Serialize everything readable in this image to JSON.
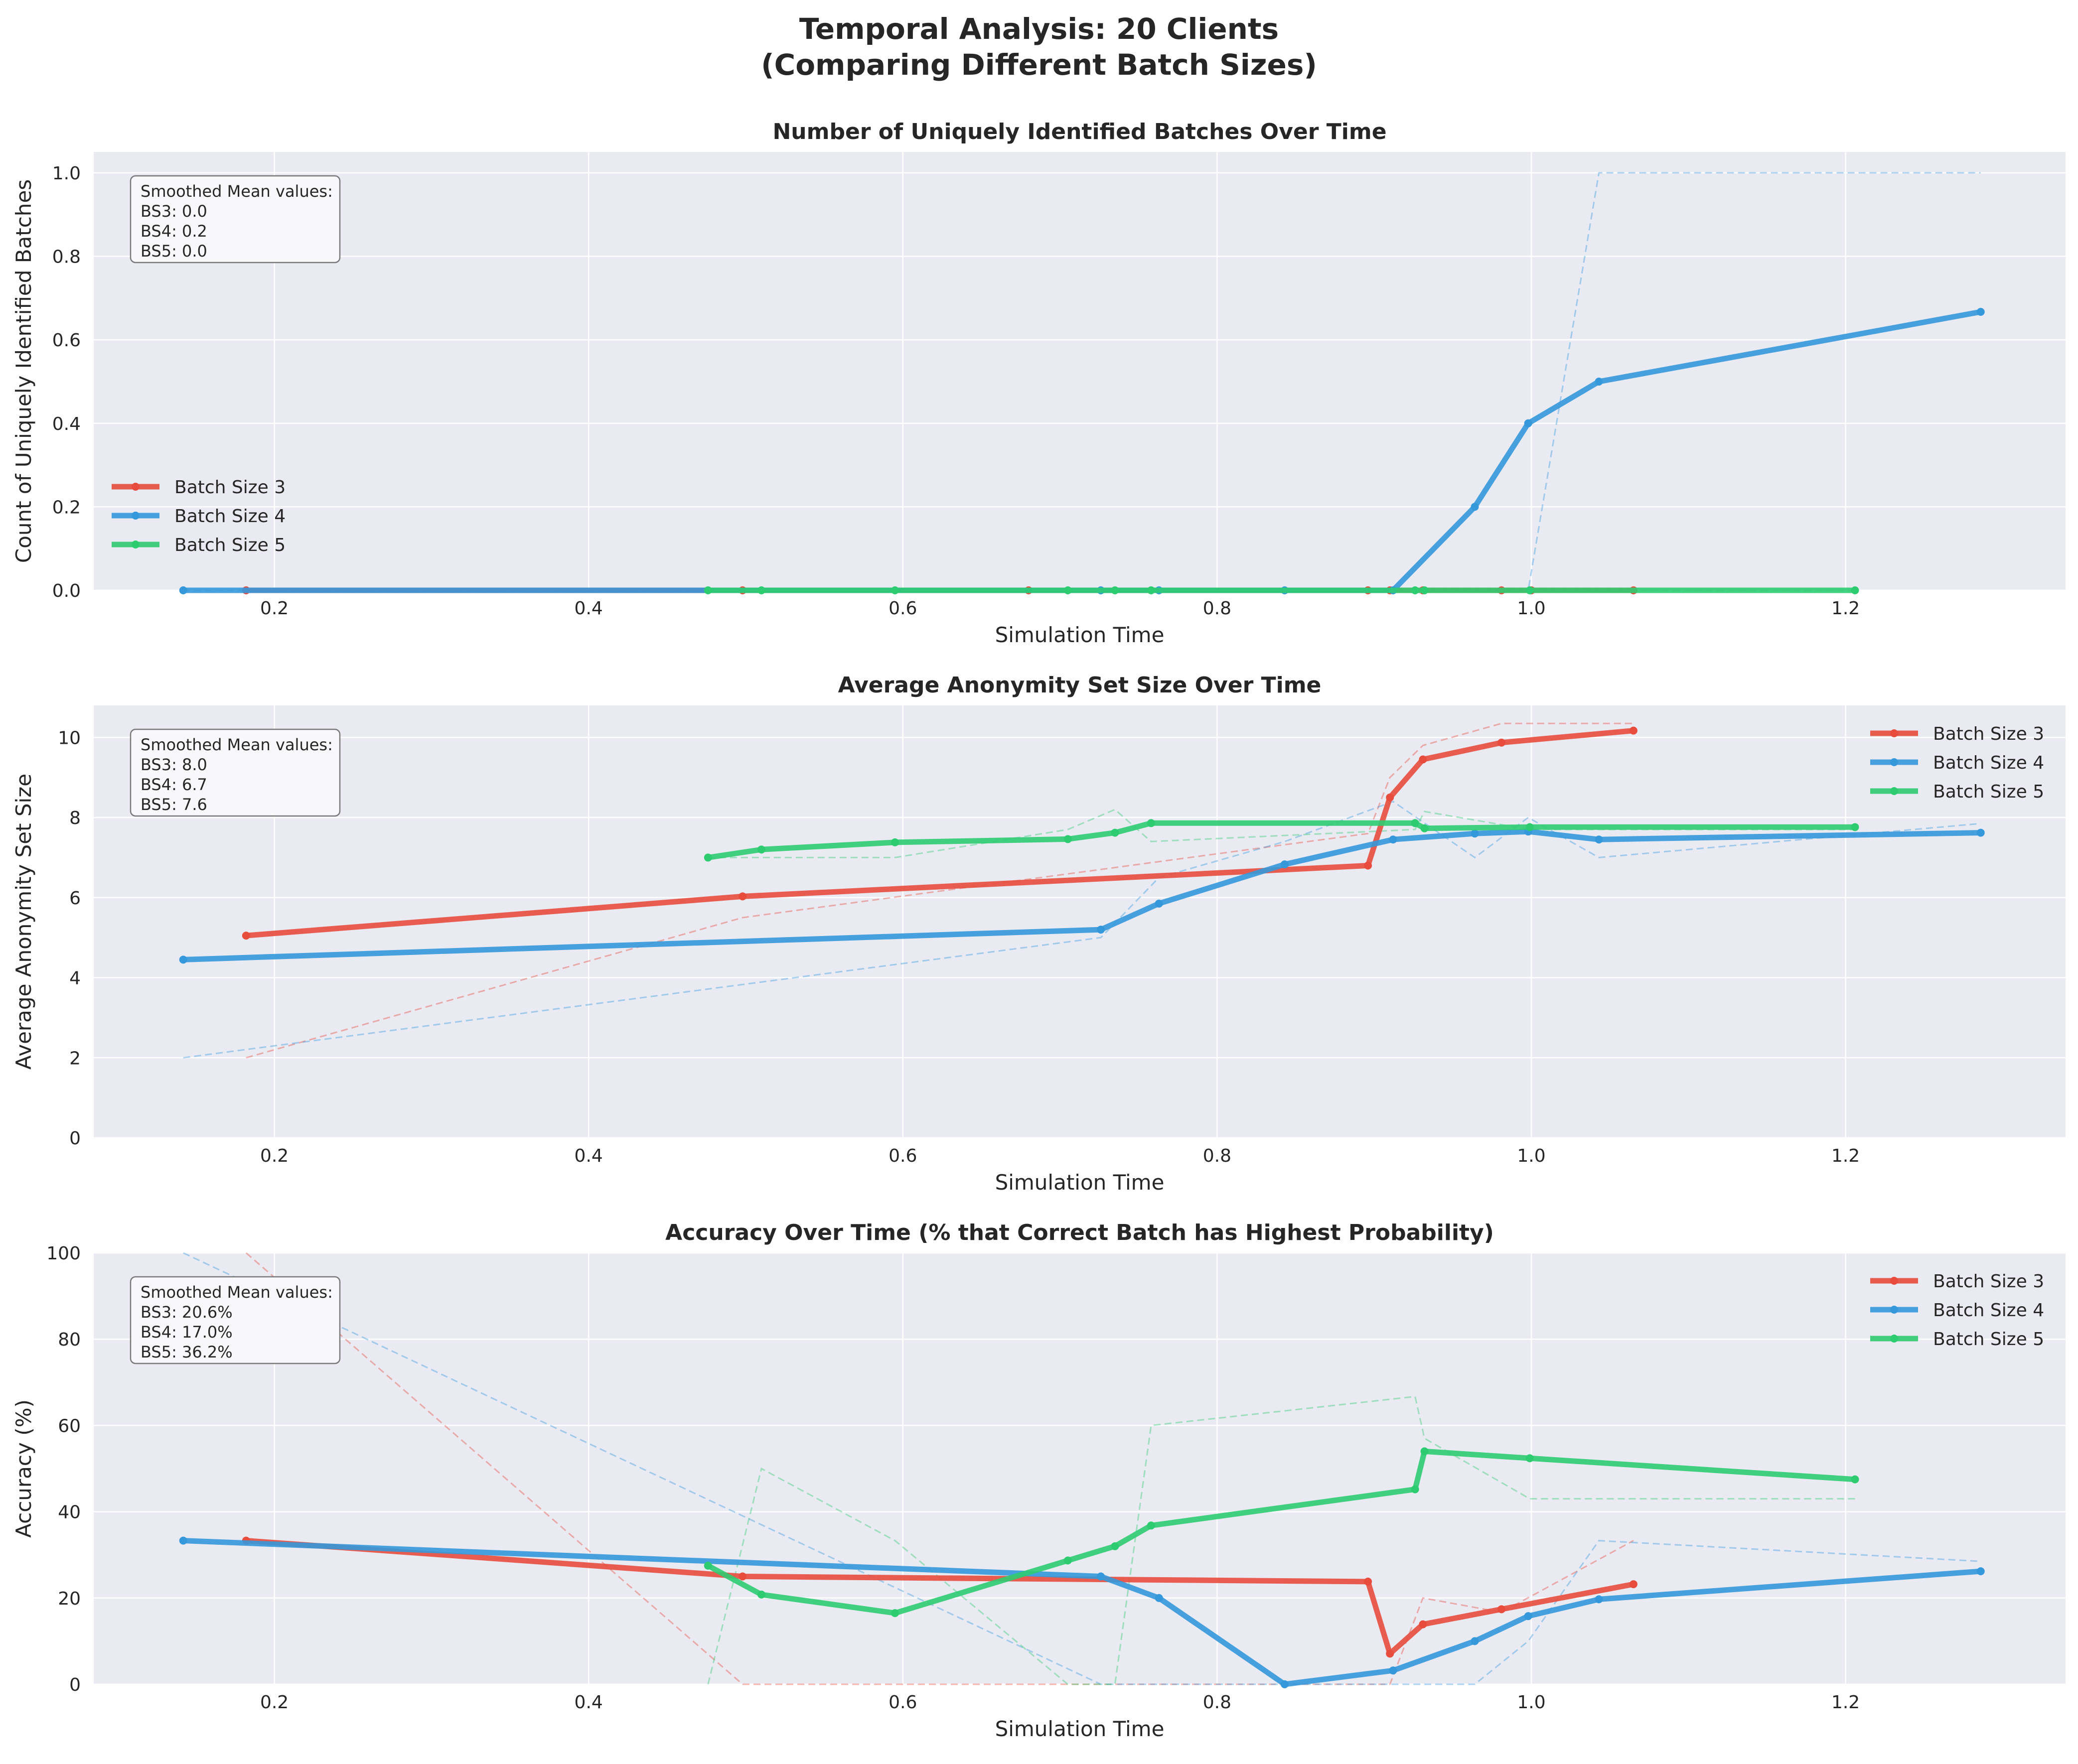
{
  "figure_title_line1": "Temporal Analysis: 20 Clients",
  "figure_title_line2": "(Comparing Different Batch Sizes)",
  "colors": {
    "Batch Size 3": "#e74c3c",
    "Batch Size 4": "#3498db",
    "Batch Size 5": "#2ecc71",
    "axes_background": "#eaeaf2",
    "grid": "#ffffff"
  },
  "chart_data": [
    {
      "type": "line",
      "title": "Number of Uniquely Identified Batches Over Time",
      "xlabel": "Simulation Time",
      "ylabel": "Count of Uniquely Identified Batches",
      "xlim": [
        0.085,
        1.34
      ],
      "ylim": [
        0,
        1.05
      ],
      "xticks": [
        0.2,
        0.4,
        0.6,
        0.8,
        1.0,
        1.2
      ],
      "xtick_labels": [
        "0.2",
        "0.4",
        "0.6",
        "0.8",
        "1.0",
        "1.2"
      ],
      "yticks": [
        0,
        0.2,
        0.4,
        0.6,
        0.8,
        1.0
      ],
      "ytick_labels": [
        "0.0",
        "0.2",
        "0.4",
        "0.6",
        "0.8",
        "1.0"
      ],
      "grid": true,
      "legend_position": "lower-left",
      "stats_box": [
        "Smoothed Mean values:",
        "BS3: 0.0",
        "BS4: 0.2",
        "BS5: 0.0"
      ],
      "series": [
        {
          "name": "Batch Size 3",
          "x": [
            0.182,
            0.498,
            0.68,
            0.896,
            0.91,
            0.931,
            0.981,
            1.0,
            1.065
          ],
          "smoothed": [
            0,
            0,
            0,
            0,
            0,
            0,
            0,
            0,
            0
          ],
          "raw": [
            0,
            0,
            0,
            0,
            0,
            0,
            0,
            0,
            0
          ]
        },
        {
          "name": "Batch Size 4",
          "x": [
            0.142,
            0.726,
            0.763,
            0.843,
            0.912,
            0.964,
            0.998,
            1.043,
            1.286
          ],
          "smoothed": [
            0,
            0,
            0,
            0,
            0,
            0.2,
            0.4,
            0.5,
            0.667
          ],
          "raw": [
            0,
            0,
            0,
            0,
            0,
            0,
            0,
            1,
            1
          ]
        },
        {
          "name": "Batch Size 5",
          "x": [
            0.476,
            0.51,
            0.595,
            0.705,
            0.735,
            0.758,
            0.926,
            0.932,
            0.999,
            1.206
          ],
          "smoothed": [
            0,
            0,
            0,
            0,
            0,
            0,
            0,
            0,
            0,
            0
          ],
          "raw": [
            0,
            0,
            0,
            0,
            0,
            0,
            0,
            0,
            0,
            0
          ]
        }
      ]
    },
    {
      "type": "line",
      "title": "Average Anonymity Set Size Over Time",
      "xlabel": "Simulation Time",
      "ylabel": "Average Anonymity Set Size",
      "xlim": [
        0.085,
        1.34
      ],
      "ylim": [
        0,
        10.8
      ],
      "xticks": [
        0.2,
        0.4,
        0.6,
        0.8,
        1.0,
        1.2
      ],
      "xtick_labels": [
        "0.2",
        "0.4",
        "0.6",
        "0.8",
        "1.0",
        "1.2"
      ],
      "yticks": [
        0,
        2,
        4,
        6,
        8,
        10
      ],
      "ytick_labels": [
        "0",
        "2",
        "4",
        "6",
        "8",
        "10"
      ],
      "grid": true,
      "legend_position": "upper-right",
      "stats_box": [
        "Smoothed Mean values:",
        "BS3: 8.0",
        "BS4: 6.7",
        "BS5: 7.6"
      ],
      "series": [
        {
          "name": "Batch Size 3",
          "x": [
            0.182,
            0.498,
            0.896,
            0.91,
            0.931,
            0.981,
            1.065
          ],
          "smoothed": [
            5.05,
            6.03,
            6.8,
            8.5,
            9.45,
            9.87,
            10.17
          ],
          "raw": [
            2.0,
            5.5,
            7.6,
            9.0,
            9.8,
            10.35,
            10.35
          ]
        },
        {
          "name": "Batch Size 4",
          "x": [
            0.142,
            0.726,
            0.763,
            0.843,
            0.912,
            0.964,
            0.998,
            1.043,
            1.286
          ],
          "smoothed": [
            4.45,
            5.2,
            5.85,
            6.83,
            7.45,
            7.6,
            7.65,
            7.45,
            7.62
          ],
          "raw": [
            2.0,
            5.0,
            6.5,
            7.4,
            8.4,
            7.0,
            8.0,
            7.0,
            7.85
          ]
        },
        {
          "name": "Batch Size 5",
          "x": [
            0.476,
            0.51,
            0.595,
            0.705,
            0.735,
            0.758,
            0.926,
            0.932,
            0.999,
            1.206
          ],
          "smoothed": [
            7.0,
            7.2,
            7.38,
            7.46,
            7.62,
            7.86,
            7.86,
            7.73,
            7.76,
            7.76
          ],
          "raw": [
            7.0,
            7.0,
            7.0,
            7.7,
            8.2,
            7.4,
            7.7,
            8.15,
            7.7,
            7.7
          ]
        }
      ]
    },
    {
      "type": "line",
      "title": "Accuracy Over Time (% that Correct Batch has Highest Probability)",
      "xlabel": "Simulation Time",
      "ylabel": "Accuracy (%)",
      "xlim": [
        0.085,
        1.34
      ],
      "ylim": [
        0,
        100
      ],
      "xticks": [
        0.2,
        0.4,
        0.6,
        0.8,
        1.0,
        1.2
      ],
      "xtick_labels": [
        "0.2",
        "0.4",
        "0.6",
        "0.8",
        "1.0",
        "1.2"
      ],
      "yticks": [
        0,
        20,
        40,
        60,
        80,
        100
      ],
      "ytick_labels": [
        "0",
        "20",
        "40",
        "60",
        "80",
        "100"
      ],
      "grid": true,
      "legend_position": "upper-right",
      "stats_box": [
        "Smoothed Mean values:",
        "BS3: 20.6%",
        "BS4: 17.0%",
        "BS5: 36.2%"
      ],
      "series": [
        {
          "name": "Batch Size 3",
          "x": [
            0.182,
            0.498,
            0.896,
            0.91,
            0.931,
            0.981,
            1.065
          ],
          "smoothed": [
            33.3,
            25.0,
            23.8,
            7.1,
            13.9,
            17.4,
            23.2
          ],
          "raw": [
            100,
            0,
            0,
            0,
            20,
            16.7,
            33.3
          ]
        },
        {
          "name": "Batch Size 4",
          "x": [
            0.142,
            0.726,
            0.763,
            0.843,
            0.912,
            0.964,
            0.998,
            1.043,
            1.286
          ],
          "smoothed": [
            33.3,
            25.0,
            20.0,
            0,
            3.2,
            10.0,
            15.8,
            19.7,
            26.2
          ],
          "raw": [
            100,
            0,
            0,
            0,
            0,
            0,
            10,
            33.3,
            28.5
          ]
        },
        {
          "name": "Batch Size 5",
          "x": [
            0.476,
            0.51,
            0.595,
            0.705,
            0.735,
            0.758,
            0.926,
            0.932,
            0.999,
            1.206
          ],
          "smoothed": [
            27.5,
            20.8,
            16.5,
            28.7,
            32.0,
            36.8,
            45.2,
            54.0,
            52.4,
            47.5
          ],
          "raw": [
            0,
            50,
            33.3,
            0,
            0,
            60,
            66.7,
            57.0,
            43.0,
            43.0
          ]
        }
      ]
    }
  ]
}
